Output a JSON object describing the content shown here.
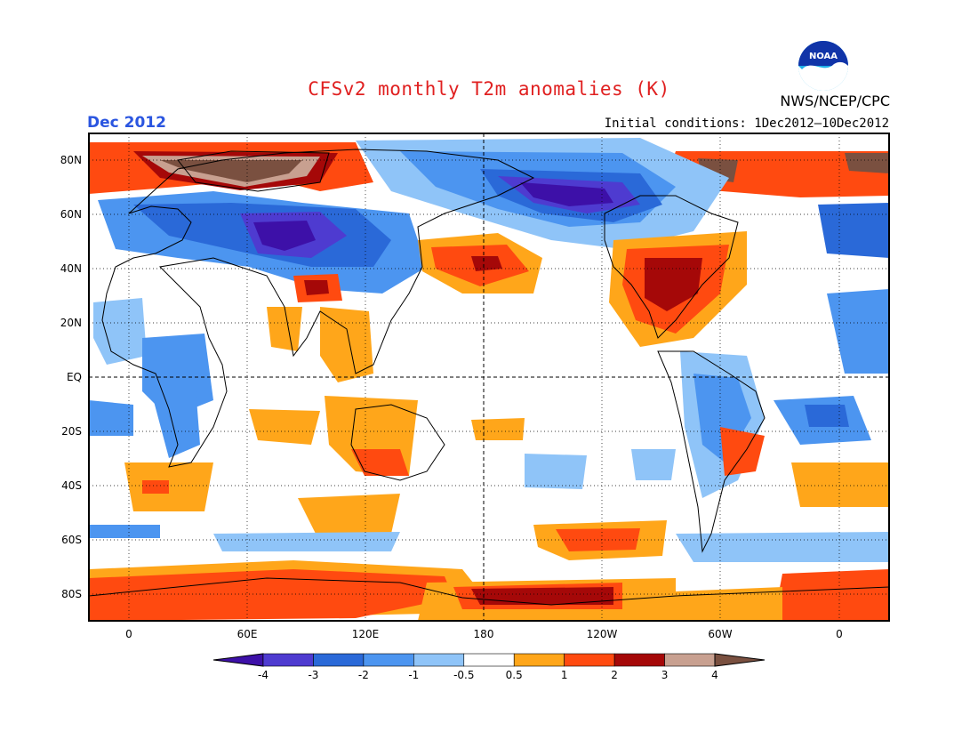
{
  "header": {
    "title": "CFSv2 monthly T2m anomalies (K)",
    "period": "Dec 2012",
    "initial_conditions": "Initial conditions: 1Dec2012–10Dec2012",
    "agency": "NWS/NCEP/CPC",
    "logo_text": "NOAA"
  },
  "map": {
    "projection": "cylindrical equidistant",
    "lon_ticks": [
      "0",
      "60E",
      "120E",
      "180",
      "120W",
      "60W",
      "0"
    ],
    "lat_ticks": [
      "80N",
      "60N",
      "40N",
      "20N",
      "EQ",
      "20S",
      "40S",
      "60S",
      "80S"
    ],
    "grid": "dotted"
  },
  "colorbar": {
    "labels": [
      "-4",
      "-3",
      "-2",
      "-1",
      "-0.5",
      "0.5",
      "1",
      "2",
      "3",
      "4"
    ],
    "colors": [
      "#3d10a8",
      "#4e3bd0",
      "#2a69d8",
      "#4c95f0",
      "#8fc4f8",
      "#ffffff",
      "#ffa61a",
      "#ff4a10",
      "#a50808",
      "#c8a090",
      "#7a5040"
    ]
  },
  "regions": [
    {
      "name": "Greenland",
      "value": 4
    },
    {
      "name": "Central Asia / Siberia",
      "value": -4
    },
    {
      "name": "Alaska / NE Siberia",
      "value": -4
    },
    {
      "name": "Eastern United States",
      "value": 3
    },
    {
      "name": "North Pacific",
      "value": 3
    },
    {
      "name": "Antarctica Ross Sea",
      "value": 3
    }
  ]
}
